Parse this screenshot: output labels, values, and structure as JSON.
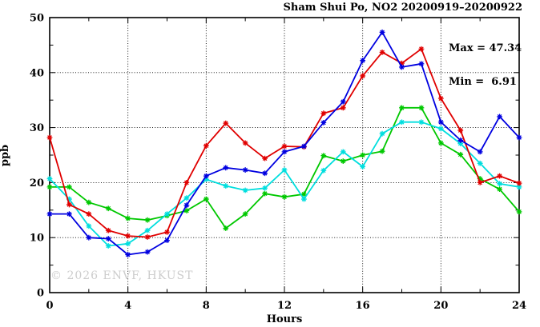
{
  "title": "Sham Shui Po, NO2 20200919–20200922",
  "stats": {
    "max_label": "Max = 47.34",
    "min_label": "Min =  6.91"
  },
  "watermark": "© 2026 ENVF, HKUST",
  "chart_data": {
    "type": "line",
    "title": "Sham Shui Po, NO2 20200919–20200922",
    "xlabel": "Hours",
    "ylabel": "ppb",
    "xlim": [
      0,
      24
    ],
    "ylim": [
      0,
      50
    ],
    "x_major_ticks": [
      0,
      4,
      8,
      12,
      16,
      20,
      24
    ],
    "x_minor_ticks": [
      2,
      6,
      10,
      14,
      18,
      22
    ],
    "y_major_ticks": [
      0,
      10,
      20,
      30,
      40,
      50
    ],
    "y_minor_ticks": [
      5,
      15,
      25,
      35,
      45
    ],
    "grid_x": [
      4,
      8,
      12,
      16,
      20
    ],
    "grid_y": [
      10,
      20,
      30,
      40
    ],
    "grid": true,
    "legend_position": "none (stats text top-right)",
    "marker": "asterisk",
    "max": 47.34,
    "min": 6.91,
    "x": [
      0,
      1,
      2,
      3,
      4,
      5,
      6,
      7,
      8,
      9,
      10,
      11,
      12,
      13,
      14,
      15,
      16,
      17,
      18,
      19,
      20,
      21,
      22,
      23,
      24
    ],
    "series": [
      {
        "name": "series-green",
        "color": "#00c800",
        "values": [
          19.2,
          19.2,
          16.4,
          15.3,
          13.5,
          13.2,
          14.0,
          14.9,
          17.0,
          11.7,
          14.3,
          18.0,
          17.4,
          17.9,
          24.9,
          23.9,
          25.0,
          25.7,
          33.6,
          33.6,
          27.2,
          25.1,
          20.7,
          18.8,
          14.7
        ]
      },
      {
        "name": "series-cyan",
        "color": "#00dede",
        "values": [
          20.7,
          17.0,
          12.1,
          8.5,
          8.9,
          11.3,
          14.3,
          17.2,
          20.6,
          19.4,
          18.6,
          19.0,
          22.3,
          17.0,
          22.2,
          25.6,
          22.9,
          28.9,
          31.0,
          31.0,
          29.8,
          27.1,
          23.5,
          19.8,
          19.2
        ]
      },
      {
        "name": "series-red",
        "color": "#e00000",
        "values": [
          28.2,
          16.0,
          14.3,
          11.3,
          10.3,
          10.1,
          11.0,
          20.0,
          26.7,
          30.8,
          27.2,
          24.4,
          26.6,
          26.5,
          32.6,
          33.6,
          39.4,
          43.7,
          41.7,
          44.3,
          35.3,
          29.5,
          20.0,
          21.2,
          19.9
        ]
      },
      {
        "name": "series-blue",
        "color": "#0000e0",
        "values": [
          14.3,
          14.3,
          10.0,
          9.8,
          6.91,
          7.4,
          9.5,
          15.9,
          21.2,
          22.7,
          22.3,
          21.7,
          25.6,
          26.6,
          30.9,
          34.7,
          42.2,
          47.34,
          41.0,
          41.6,
          31.0,
          27.7,
          25.6,
          32.0,
          28.2
        ]
      }
    ]
  }
}
